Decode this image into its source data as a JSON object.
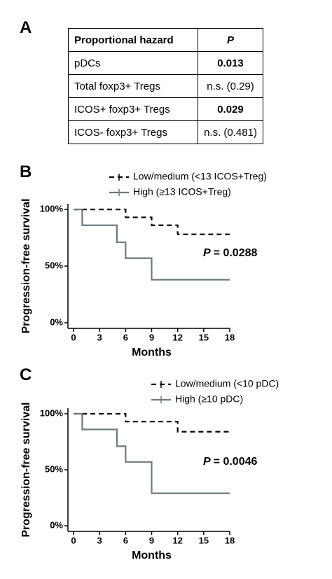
{
  "panels": [
    "A",
    "B",
    "C"
  ],
  "table": {
    "header": [
      "Proportional hazard",
      "P"
    ],
    "rows": [
      [
        "pDCs",
        "0.013"
      ],
      [
        "Total foxp3+ Tregs",
        "n.s. (0.29)"
      ],
      [
        "ICOS+ foxp3+ Tregs",
        "0.029"
      ],
      [
        "ICOS- foxp3+ Tregs",
        "n.s. (0.481)"
      ]
    ]
  },
  "chart_data": [
    {
      "type": "step",
      "xlabel": "Months",
      "ylabel": "Progression-free survival",
      "annotation_label": "P",
      "annotation": "= 0.0288",
      "xlim": [
        0,
        18
      ],
      "xticks": [
        0,
        3,
        6,
        9,
        12,
        15,
        18
      ],
      "ylim": [
        0,
        105
      ],
      "yticks": [
        {
          "value": 0,
          "label": "0%"
        },
        {
          "value": 50,
          "label": "50%"
        },
        {
          "value": 100,
          "label": "100%"
        }
      ],
      "series": [
        {
          "name": "Low/medium (<13 ICOS+Treg)",
          "color": "#000000",
          "dashed": true,
          "x": [
            0,
            6,
            9,
            12,
            18
          ],
          "values": [
            100,
            93,
            86,
            78,
            78
          ]
        },
        {
          "name": "High (≥13 ICOS+Treg)",
          "color": "#6d7b7b",
          "dashed": false,
          "x": [
            0,
            1,
            5,
            6,
            9,
            18
          ],
          "values": [
            100,
            86,
            71,
            57,
            38,
            38
          ]
        }
      ]
    },
    {
      "type": "step",
      "xlabel": "Months",
      "ylabel": "Progression-free survival",
      "annotation_label": "P",
      "annotation": "= 0.0046",
      "xlim": [
        0,
        18
      ],
      "xticks": [
        0,
        3,
        6,
        9,
        12,
        15,
        18
      ],
      "ylim": [
        0,
        105
      ],
      "yticks": [
        {
          "value": 0,
          "label": "0%"
        },
        {
          "value": 50,
          "label": "50%"
        },
        {
          "value": 100,
          "label": "100%"
        }
      ],
      "series": [
        {
          "name": "Low/medium (<10 pDC)",
          "color": "#000000",
          "dashed": true,
          "x": [
            0,
            6,
            12,
            18
          ],
          "values": [
            100,
            93,
            84,
            84
          ]
        },
        {
          "name": "High (≥10 pDC)",
          "color": "#6d7b7b",
          "dashed": false,
          "x": [
            0,
            1,
            5,
            6,
            9,
            18
          ],
          "values": [
            100,
            86,
            71,
            57,
            29,
            29
          ]
        }
      ]
    }
  ]
}
